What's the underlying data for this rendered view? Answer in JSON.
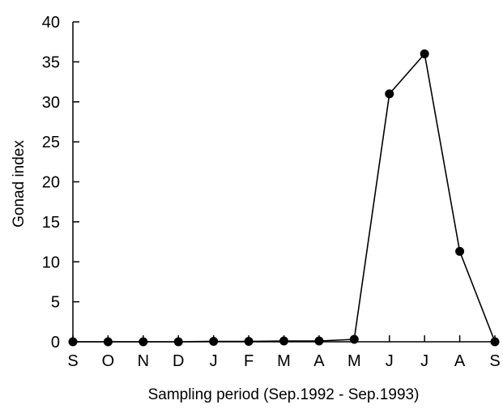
{
  "chart_data": {
    "type": "line",
    "xlabel": "Sampling period (Sep.1992 - Sep.1993)",
    "ylabel": "Gonad index",
    "categories": [
      "S",
      "O",
      "N",
      "D",
      "J",
      "F",
      "M",
      "A",
      "M",
      "J",
      "J",
      "A",
      "S"
    ],
    "series": [
      {
        "values": [
          0,
          0,
          0,
          0,
          0.05,
          0.05,
          0.1,
          0.1,
          0.3,
          31,
          36,
          11.3,
          0
        ],
        "color": "#000000",
        "marker": "filled-circle"
      }
    ],
    "ylim": [
      0,
      40
    ],
    "yticks": [
      0,
      5,
      10,
      15,
      20,
      25,
      30,
      35,
      40
    ],
    "grid": false,
    "legend": "none"
  }
}
